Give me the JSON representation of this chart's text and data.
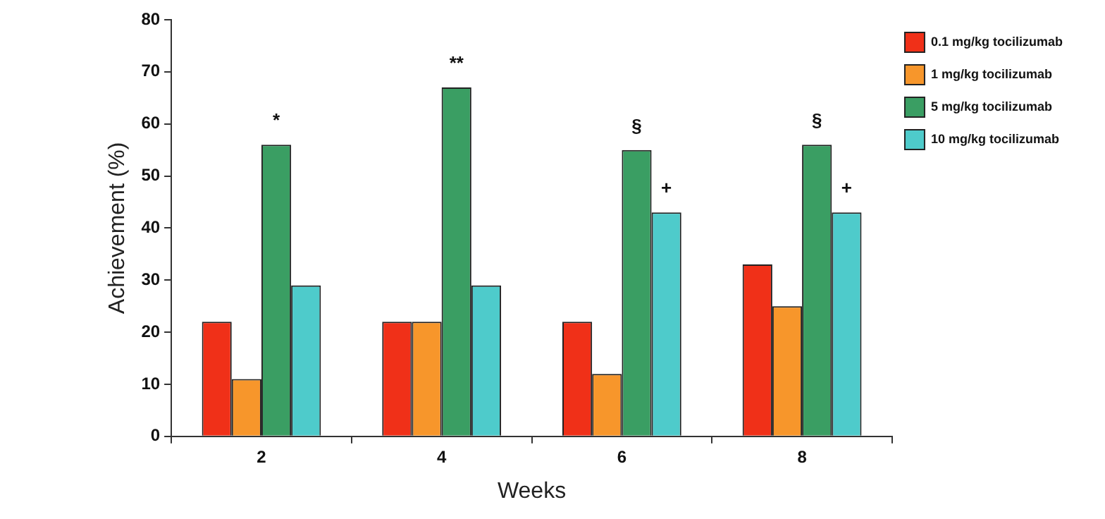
{
  "chart_data": {
    "type": "bar",
    "xlabel": "Weeks",
    "ylabel": "Achievement (%)",
    "categories": [
      "2",
      "4",
      "6",
      "8"
    ],
    "series": [
      {
        "name": "0.1 mg/kg tocilizumab",
        "color": "#f03018",
        "values": [
          22,
          22,
          22,
          33
        ]
      },
      {
        "name": "1 mg/kg tocilizumab",
        "color": "#f7962b",
        "values": [
          11,
          22,
          12,
          25
        ]
      },
      {
        "name": "5 mg/kg tocilizumab",
        "color": "#3a9e63",
        "values": [
          56,
          67,
          55,
          56
        ]
      },
      {
        "name": "10 mg/kg tocilizumab",
        "color": "#4ecbcb",
        "values": [
          29,
          29,
          43,
          43
        ]
      }
    ],
    "ylim": [
      0,
      80
    ],
    "yticks": [
      0,
      10,
      20,
      30,
      40,
      50,
      60,
      70,
      80
    ],
    "grid": false,
    "legend": "top right",
    "annotations": [
      {
        "text": "*",
        "x": "2",
        "y": 56
      },
      {
        "text": "**",
        "x": "4",
        "y": 67
      },
      {
        "text": "§",
        "x": "6",
        "y": 55
      },
      {
        "text": "§",
        "x": "8",
        "y": 56
      },
      {
        "text": "+",
        "x": "6",
        "y": 43
      },
      {
        "text": "+",
        "x": "8",
        "y": 43
      }
    ]
  }
}
